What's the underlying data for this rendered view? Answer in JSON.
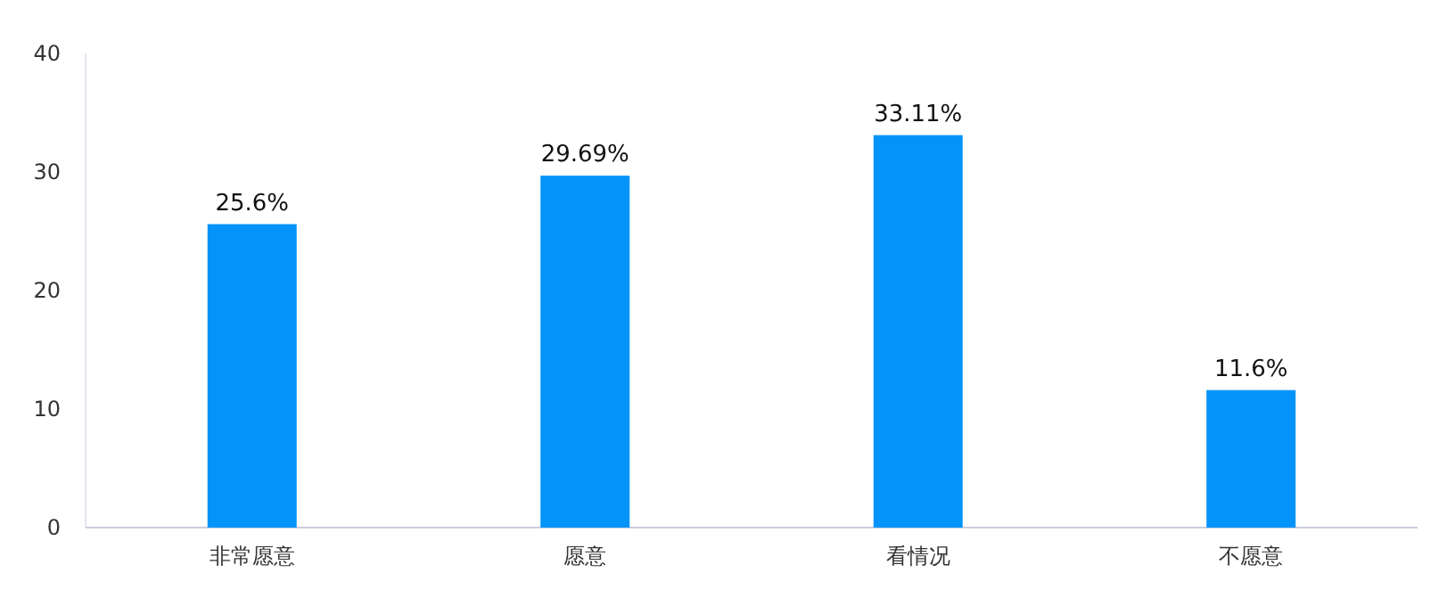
{
  "chart_data": {
    "type": "bar",
    "categories": [
      "非常愿意",
      "愿意",
      "看情况",
      "不愿意"
    ],
    "values": [
      25.6,
      29.69,
      33.11,
      11.6
    ],
    "value_labels": [
      "25.6%",
      "29.69%",
      "33.11%",
      "11.6%"
    ],
    "color": "#0494f9",
    "ylim": [
      0,
      40
    ],
    "yticks": [
      0,
      10,
      20,
      30,
      40
    ],
    "grid": false
  }
}
